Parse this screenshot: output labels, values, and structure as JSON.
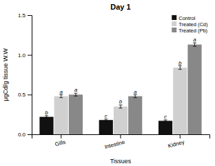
{
  "chart_data": {
    "type": "bar",
    "title": "Day 1",
    "xlabel": "Tissues",
    "ylabel": "μgCd/g tissue W.W",
    "categories": [
      "Gills",
      "Intestine",
      "Kidney"
    ],
    "series": [
      {
        "name": "Control",
        "color": "#111111",
        "values": [
          0.22,
          0.18,
          0.17
        ],
        "errors": [
          0.015,
          0.012,
          0.012
        ],
        "significance": [
          "b",
          "c",
          "c"
        ]
      },
      {
        "name": "Treated (Cd)",
        "color": "#d0d0d0",
        "values": [
          0.48,
          0.35,
          0.84
        ],
        "errors": [
          0.018,
          0.02,
          0.022
        ],
        "significance": [
          "a",
          "b",
          "b"
        ]
      },
      {
        "name": "Treated (Pb)",
        "color": "#888888",
        "values": [
          0.5,
          0.48,
          1.13
        ],
        "errors": [
          0.018,
          0.018,
          0.022
        ],
        "significance": [
          "a",
          "a",
          "a"
        ]
      }
    ],
    "ylim": [
      0,
      1.5
    ],
    "yticks": [
      {
        "value": 0,
        "label": "0.0"
      },
      0.5,
      {
        "value": 1,
        "label": "1.0"
      },
      1.5
    ],
    "grid": false,
    "legend": "upper right"
  }
}
